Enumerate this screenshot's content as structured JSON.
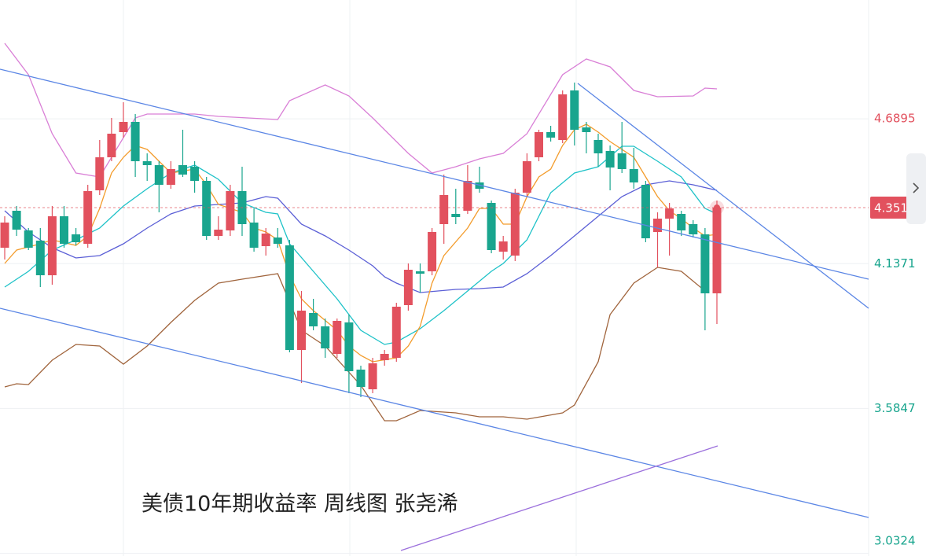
{
  "chart_data": {
    "type": "candlestick",
    "title": "美债10年期收益率 周线图 张尧浠",
    "ylim": [
      3.022,
      5.143
    ],
    "yticks": [
      3.0324,
      3.5847,
      4.1371,
      4.6895
    ],
    "grid": true,
    "up_color": "#e2515e",
    "down_color": "#19a58e",
    "last_price": {
      "value": 4.351,
      "label": "4.3510"
    },
    "last_price_color": "#e2515e",
    "open": [
      4.198,
      4.339,
      4.264,
      4.225,
      4.093,
      4.318,
      4.249,
      4.213,
      4.417,
      4.543,
      4.639,
      4.678,
      4.528,
      4.513,
      4.438,
      4.513,
      4.507,
      4.453,
      4.243,
      4.264,
      4.414,
      4.294,
      4.204,
      4.237,
      4.207,
      3.808,
      3.949,
      3.898,
      3.793,
      3.913,
      3.733,
      3.658,
      3.769,
      3.778,
      3.979,
      4.108,
      4.108,
      4.288,
      4.327,
      4.339,
      4.447,
      4.369,
      4.183,
      4.168,
      4.408,
      4.543,
      4.639,
      4.609,
      4.798,
      4.657,
      4.609,
      4.567,
      4.558,
      4.498,
      4.438,
      4.258,
      4.309,
      4.327,
      4.288,
      4.249,
      4.024
    ],
    "high": [
      4.318,
      4.357,
      4.273,
      4.273,
      4.357,
      4.357,
      4.273,
      4.438,
      4.609,
      4.693,
      4.753,
      4.708,
      4.558,
      4.528,
      4.528,
      4.648,
      4.528,
      4.468,
      4.318,
      4.438,
      4.507,
      4.348,
      4.273,
      4.273,
      4.228,
      4.033,
      4.003,
      3.928,
      3.928,
      3.943,
      3.748,
      3.778,
      3.808,
      3.988,
      4.138,
      4.138,
      4.273,
      4.477,
      4.423,
      4.513,
      4.507,
      4.378,
      4.243,
      4.423,
      4.558,
      4.648,
      4.663,
      4.798,
      4.828,
      4.678,
      4.633,
      4.588,
      4.678,
      4.579,
      4.453,
      4.333,
      4.369,
      4.339,
      4.303,
      4.273,
      4.378
    ],
    "low": [
      4.153,
      4.243,
      4.189,
      4.048,
      4.057,
      4.198,
      4.207,
      4.198,
      4.399,
      4.528,
      4.618,
      4.468,
      4.453,
      4.333,
      4.423,
      4.468,
      4.408,
      4.228,
      4.228,
      4.243,
      4.243,
      4.183,
      4.168,
      4.198,
      3.799,
      3.682,
      3.883,
      3.778,
      3.778,
      3.643,
      3.628,
      3.643,
      3.748,
      3.763,
      3.958,
      4.027,
      4.093,
      4.213,
      4.288,
      4.327,
      4.408,
      4.177,
      4.153,
      4.147,
      4.393,
      4.528,
      4.603,
      4.597,
      4.588,
      4.558,
      4.507,
      4.417,
      4.483,
      4.423,
      4.219,
      4.123,
      4.168,
      4.243,
      4.237,
      3.883,
      3.907
    ],
    "close": [
      4.294,
      4.267,
      4.198,
      4.093,
      4.318,
      4.213,
      4.219,
      4.414,
      4.543,
      4.633,
      4.678,
      4.528,
      4.513,
      4.438,
      4.498,
      4.477,
      4.453,
      4.243,
      4.267,
      4.414,
      4.288,
      4.198,
      4.252,
      4.213,
      3.808,
      3.958,
      3.898,
      3.814,
      3.919,
      3.727,
      3.667,
      3.757,
      3.793,
      3.973,
      4.114,
      4.099,
      4.258,
      4.399,
      4.315,
      4.453,
      4.423,
      4.189,
      4.222,
      4.408,
      4.528,
      4.639,
      4.618,
      4.783,
      4.648,
      4.639,
      4.558,
      4.504,
      4.498,
      4.447,
      4.234,
      4.309,
      4.348,
      4.264,
      4.249,
      4.024,
      4.351
    ],
    "series": [
      {
        "color": "#d97fd6",
        "x": [
          0,
          2,
          4,
          6,
          8,
          11,
          12,
          16,
          18,
          23,
          24,
          27,
          29,
          31,
          34,
          36,
          38,
          40,
          42,
          44,
          46,
          47,
          49,
          51,
          53,
          55,
          58,
          59,
          60
        ],
        "values": [
          4.978,
          4.858,
          4.633,
          4.483,
          4.468,
          4.693,
          4.708,
          4.708,
          4.699,
          4.687,
          4.759,
          4.819,
          4.777,
          4.693,
          4.558,
          4.483,
          4.507,
          4.537,
          4.558,
          4.633,
          4.783,
          4.858,
          4.918,
          4.888,
          4.798,
          4.774,
          4.777,
          4.807,
          4.804
        ]
      },
      {
        "color": "#a0643c",
        "x": [
          0,
          1,
          2,
          4,
          6,
          8,
          10,
          12,
          14,
          16,
          18,
          20,
          23,
          25,
          27,
          30,
          32,
          33,
          35,
          38,
          40,
          42,
          44,
          47,
          48,
          50,
          51,
          53,
          55,
          57,
          59
        ],
        "values": [
          3.667,
          3.679,
          3.676,
          3.769,
          3.829,
          3.823,
          3.754,
          3.823,
          3.913,
          3.997,
          4.063,
          4.078,
          4.099,
          3.883,
          3.823,
          3.673,
          3.538,
          3.538,
          3.577,
          3.568,
          3.553,
          3.553,
          3.544,
          3.568,
          3.598,
          3.763,
          3.943,
          4.063,
          4.123,
          4.108,
          4.033
        ]
      },
      {
        "color": "#5b5fd6",
        "x": [
          0,
          2,
          4,
          6,
          8,
          10,
          12,
          14,
          16,
          18,
          20,
          22,
          23,
          25,
          27,
          29,
          31,
          32,
          33,
          35,
          38,
          40,
          42,
          44,
          46,
          48,
          50,
          52,
          54,
          56,
          58,
          60
        ],
        "values": [
          4.339,
          4.258,
          4.198,
          4.159,
          4.168,
          4.213,
          4.273,
          4.327,
          4.357,
          4.363,
          4.369,
          4.393,
          4.387,
          4.288,
          4.243,
          4.189,
          4.129,
          4.087,
          4.063,
          4.027,
          4.039,
          4.042,
          4.048,
          4.099,
          4.168,
          4.243,
          4.318,
          4.393,
          4.438,
          4.453,
          4.438,
          4.417
        ]
      },
      {
        "color": "#1ec2c8",
        "x": [
          0,
          2,
          4,
          6,
          8,
          10,
          12,
          14,
          16,
          18,
          20,
          22,
          23,
          24,
          26,
          28,
          30,
          32,
          33,
          35,
          37,
          39,
          41,
          42,
          44,
          46,
          48,
          50,
          52,
          53,
          55,
          57,
          59,
          60
        ],
        "values": [
          4.048,
          4.108,
          4.189,
          4.228,
          4.273,
          4.357,
          4.423,
          4.483,
          4.513,
          4.459,
          4.369,
          4.333,
          4.327,
          4.213,
          4.108,
          4.003,
          3.883,
          3.829,
          3.838,
          3.889,
          3.958,
          4.033,
          4.108,
          4.138,
          4.228,
          4.408,
          4.483,
          4.507,
          4.585,
          4.585,
          4.528,
          4.468,
          4.348,
          4.327
        ]
      },
      {
        "color": "#f39c2c",
        "x": [
          0,
          1,
          3,
          4,
          6,
          7,
          8,
          9,
          10,
          11,
          12,
          13,
          14,
          16,
          17,
          18,
          20,
          21,
          22,
          23,
          24,
          25,
          26,
          28,
          29,
          30,
          31,
          33,
          34,
          35,
          36,
          37,
          39,
          40,
          41,
          42,
          43,
          44,
          45,
          46,
          47,
          48,
          49,
          50,
          51,
          53,
          54,
          55,
          56,
          57,
          58,
          59,
          60
        ],
        "values": [
          4.138,
          4.189,
          4.213,
          4.228,
          4.207,
          4.243,
          4.348,
          4.483,
          4.543,
          4.588,
          4.573,
          4.528,
          4.483,
          4.498,
          4.438,
          4.363,
          4.333,
          4.273,
          4.258,
          4.228,
          4.093,
          4.003,
          3.958,
          3.883,
          3.823,
          3.787,
          3.763,
          3.778,
          3.823,
          3.898,
          4.063,
          4.168,
          4.273,
          4.348,
          4.348,
          4.288,
          4.288,
          4.393,
          4.468,
          4.498,
          4.588,
          4.648,
          4.669,
          4.639,
          4.603,
          4.543,
          4.468,
          4.393,
          4.339,
          4.309,
          4.273,
          4.243,
          4.249
        ]
      }
    ]
  }
}
